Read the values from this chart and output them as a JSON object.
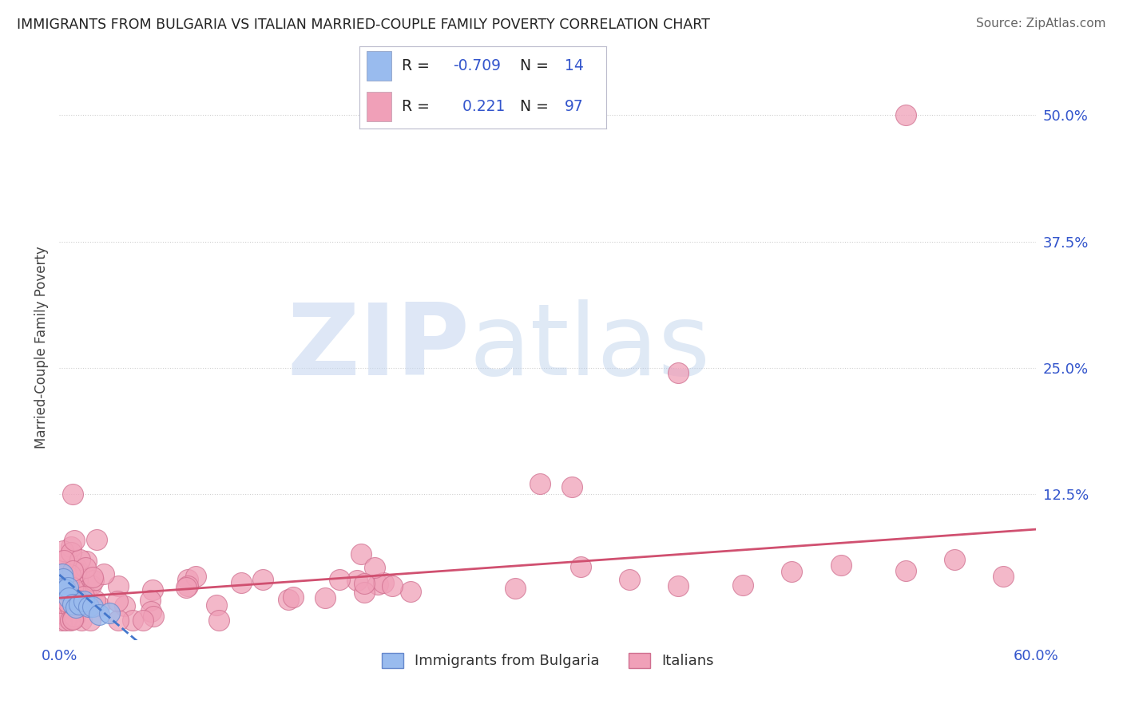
{
  "title": "IMMIGRANTS FROM BULGARIA VS ITALIAN MARRIED-COUPLE FAMILY POVERTY CORRELATION CHART",
  "source": "Source: ZipAtlas.com",
  "ylabel": "Married-Couple Family Poverty",
  "xlim": [
    0.0,
    0.6
  ],
  "ylim": [
    -0.02,
    0.56
  ],
  "xtick_labels": [
    "0.0%",
    "60.0%"
  ],
  "ytick_positions": [
    0.0,
    0.125,
    0.25,
    0.375,
    0.5
  ],
  "ytick_labels": [
    "",
    "12.5%",
    "25.0%",
    "37.5%",
    "50.0%"
  ],
  "grid_color": "#d0d0d0",
  "background_color": "#ffffff",
  "watermark_zip": "ZIP",
  "watermark_atlas": "atlas",
  "bulgaria_color": "#99bbee",
  "bulgaria_edge": "#6688cc",
  "italy_color": "#f0a0b8",
  "italy_edge": "#d07090",
  "trend_bulgaria_color": "#4477cc",
  "trend_italy_color": "#d05070",
  "tick_color": "#3355cc",
  "title_color": "#222222",
  "source_color": "#666666",
  "legend_r1_text": "R = -0.709",
  "legend_n1_text": "N = 14",
  "legend_r2_text": "R =   0.221",
  "legend_n2_text": "N = 97",
  "legend_text_color": "#222222",
  "legend_val_color": "#3355cc",
  "ylabel_color": "#444444"
}
